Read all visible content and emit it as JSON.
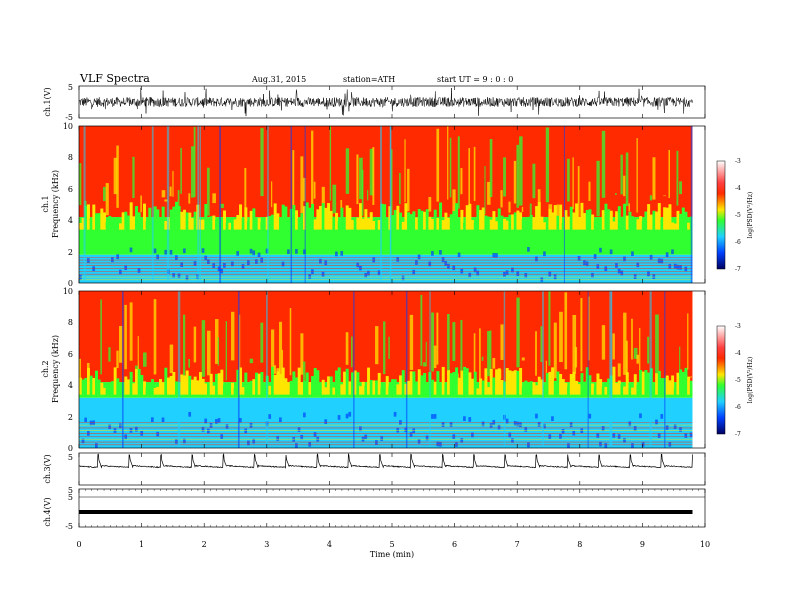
{
  "header": {
    "title": "VLF  Spectra",
    "date": "Aug.31, 2015",
    "station": "station=ATH",
    "start": "start  UT =   9  : 0  : 0"
  },
  "chart_data": [
    {
      "type": "line",
      "panel": "ch1-waveform",
      "ylabel": "ch.1(V)",
      "ylim": [
        -5,
        5
      ],
      "yticks": [
        "5",
        "-5"
      ],
      "x_unit": "min",
      "xlim": [
        0,
        10
      ],
      "data_extent": [
        0,
        9.8
      ],
      "description_values": {
        "baseline": 0,
        "typical_amplitude": 1.5
      },
      "color": "#000000"
    },
    {
      "type": "heatmap",
      "panel": "ch1-spectrogram",
      "ylabel": "Frequency (kHz)",
      "channel_label": "ch.1",
      "ylim": [
        0,
        10
      ],
      "yticks": [
        "0",
        "2",
        "4",
        "6",
        "8",
        "10"
      ],
      "xlim": [
        0,
        10
      ],
      "data_extent": [
        0,
        9.8
      ],
      "bands_khz": [
        {
          "from": 0,
          "to": 1.8,
          "level": -5.6
        },
        {
          "from": 1.8,
          "to": 4.2,
          "level": -4.8
        },
        {
          "from": 4.2,
          "to": 10,
          "level": -3.9
        }
      ],
      "colorbar": {
        "label": "log(PSD(V²/Hz)",
        "range": [
          -7,
          -3
        ],
        "ticks": [
          "-3",
          "-4",
          "-5",
          "-6",
          "-7"
        ]
      }
    },
    {
      "type": "heatmap",
      "panel": "ch2-spectrogram",
      "ylabel": "Frequency (kHz)",
      "channel_label": "ch.2",
      "ylim": [
        0,
        10
      ],
      "yticks": [
        "0",
        "2",
        "4",
        "6",
        "8",
        "10"
      ],
      "xlim": [
        0,
        10
      ],
      "data_extent": [
        0,
        9.8
      ],
      "bands_khz": [
        {
          "from": 0,
          "to": 3.2,
          "level": -5.5
        },
        {
          "from": 3.2,
          "to": 4.2,
          "level": -4.9
        },
        {
          "from": 4.2,
          "to": 10,
          "level": -3.9
        }
      ],
      "colorbar": {
        "label": "log(PSD(V²/Hz)",
        "range": [
          -7,
          -3
        ],
        "ticks": [
          "-3",
          "-4",
          "-5",
          "-6",
          "-7"
        ]
      }
    },
    {
      "type": "line",
      "panel": "ch3-waveform",
      "ylabel": "ch.3(V)",
      "ylim": [
        -5,
        5
      ],
      "yticks": [
        "5"
      ],
      "xlim": [
        0,
        10
      ],
      "data_extent": [
        0,
        9.8
      ],
      "pulse_period_min": 0.5,
      "pulse_peak_v": 4.5,
      "baseline_v": 0.5,
      "color": "#000000"
    },
    {
      "type": "line",
      "panel": "ch4-waveform",
      "ylabel": "ch.4(V)",
      "ylim": [
        -5,
        5
      ],
      "yticks": [
        "5",
        "5",
        "-5"
      ],
      "xlim": [
        0,
        10
      ],
      "data_extent": [
        0,
        9.8
      ],
      "constant_v": 0,
      "color": "#000000"
    }
  ],
  "x_axis": {
    "label": "Time  (min)",
    "ticks": [
      "0",
      "1",
      "2",
      "3",
      "4",
      "5",
      "6",
      "7",
      "8",
      "9",
      "10"
    ]
  },
  "colors": {
    "c_m3": "#ffffff",
    "c_m35": "#ff2020",
    "c_m4": "#ff2a00",
    "c_m45": "#ffe600",
    "c_m5": "#30ff30",
    "c_m55": "#20d0ff",
    "c_m6": "#0040ff",
    "c_m7": "#000060"
  }
}
